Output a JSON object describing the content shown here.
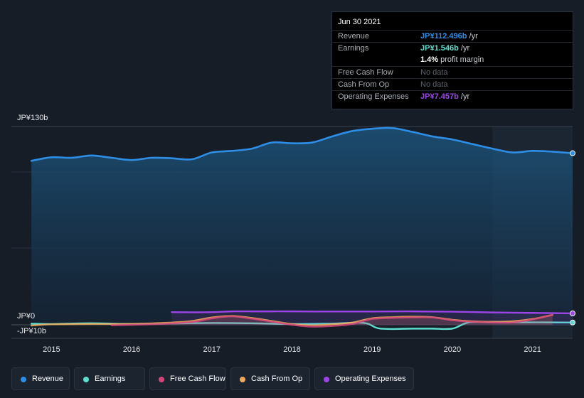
{
  "tooltip": {
    "date": "Jun 30 2021",
    "rows": [
      {
        "label": "Revenue",
        "value": "JP¥112.496b",
        "unit": " /yr",
        "color": "#2e8ee6"
      },
      {
        "label": "Earnings",
        "value": "JP¥1.546b",
        "unit": " /yr",
        "color": "#5ee0d0"
      },
      {
        "label": "",
        "value": "1.4%",
        "unit": " profit margin",
        "color": "#ffffff"
      },
      {
        "label": "Free Cash Flow",
        "value": "No data",
        "unit": "",
        "color": "#5e636b"
      },
      {
        "label": "Cash From Op",
        "value": "No data",
        "unit": "",
        "color": "#5e636b"
      },
      {
        "label": "Operating Expenses",
        "value": "JP¥7.457b",
        "unit": " /yr",
        "color": "#9b45e6"
      }
    ]
  },
  "axes": {
    "y_top_label": "JP¥130b",
    "y_zero_label": "JP¥0",
    "y_bottom_label": "-JP¥10b"
  },
  "chart_data": {
    "type": "line",
    "ylim": [
      -10,
      130
    ],
    "x_ticks": [
      "2015",
      "2016",
      "2017",
      "2018",
      "2019",
      "2020",
      "2021"
    ],
    "x_tick_values": [
      2015,
      2016,
      2017,
      2018,
      2019,
      2020,
      2021
    ],
    "xlim": [
      2014.5,
      2021.5
    ],
    "highlight_from": 2020.5,
    "series": [
      {
        "name": "Revenue",
        "color": "#2e8ee6",
        "area": true,
        "x": [
          2014.75,
          2015.0,
          2015.25,
          2015.5,
          2015.75,
          2016.0,
          2016.25,
          2016.5,
          2016.75,
          2017.0,
          2017.25,
          2017.5,
          2017.75,
          2018.0,
          2018.25,
          2018.5,
          2018.75,
          2019.0,
          2019.25,
          2019.5,
          2019.75,
          2020.0,
          2020.25,
          2020.5,
          2020.75,
          2021.0,
          2021.25,
          2021.5
        ],
        "y": [
          107.5,
          109.8,
          109.5,
          111.0,
          109.5,
          108.0,
          109.5,
          109.2,
          108.5,
          113.0,
          114.0,
          115.5,
          119.5,
          119.0,
          119.5,
          123.5,
          127.0,
          128.5,
          129.0,
          126.5,
          123.5,
          121.5,
          118.5,
          115.5,
          113.0,
          114.0,
          113.5,
          112.5
        ]
      },
      {
        "name": "Earnings",
        "color": "#5ee0d0",
        "area": false,
        "x": [
          2014.75,
          2015.0,
          2015.5,
          2016.0,
          2016.5,
          2017.0,
          2017.5,
          2018.0,
          2018.5,
          2018.9,
          2019.1,
          2019.5,
          2019.75,
          2020.0,
          2020.2,
          2020.5,
          2021.0,
          2021.5
        ],
        "y": [
          0.7,
          0.5,
          1.0,
          0.5,
          0.9,
          1.2,
          1.0,
          0.5,
          0.8,
          1.2,
          -2.5,
          -2.5,
          -2.5,
          -2.5,
          1.5,
          1.5,
          1.6,
          1.5
        ]
      },
      {
        "name": "Free Cash Flow",
        "color": "#d6457a",
        "area": false,
        "x": [
          2015.75,
          2016.25,
          2016.75,
          2017.0,
          2017.25,
          2017.5,
          2017.75,
          2018.0,
          2018.25,
          2018.5,
          2018.75,
          2019.0,
          2019.25,
          2019.5,
          2019.75,
          2020.0,
          2020.25,
          2020.5,
          2020.75,
          2021.0,
          2021.25
        ],
        "y": [
          -0.3,
          0.3,
          1.8,
          4.2,
          5.5,
          4.0,
          2.0,
          0.0,
          -1.2,
          -0.8,
          0.5,
          3.8,
          4.5,
          4.8,
          4.8,
          3.0,
          2.0,
          1.5,
          1.5,
          3.5,
          6.5
        ]
      },
      {
        "name": "Cash From Op",
        "color": "#f0a95a",
        "area": false,
        "x": [
          2014.75,
          2015.0,
          2015.5,
          2016.0,
          2016.5,
          2016.75,
          2017.0,
          2017.25,
          2017.5,
          2017.75,
          2018.0,
          2018.25,
          2018.5,
          2018.75,
          2019.0,
          2019.25,
          2019.5,
          2019.75,
          2020.0,
          2020.25,
          2020.5,
          2020.75,
          2021.0,
          2021.25
        ],
        "y": [
          -0.5,
          0.3,
          0.5,
          0.6,
          1.5,
          2.5,
          4.8,
          5.8,
          4.5,
          2.5,
          0.5,
          -0.3,
          0.3,
          1.5,
          4.3,
          5.0,
          5.3,
          5.0,
          3.3,
          2.3,
          2.0,
          2.3,
          3.8,
          6.5
        ]
      },
      {
        "name": "Operating Expenses",
        "color": "#9b45e6",
        "area": false,
        "x": [
          2016.5,
          2016.75,
          2017.0,
          2017.25,
          2017.5,
          2017.75,
          2018.0,
          2018.5,
          2019.0,
          2019.5,
          2020.0,
          2020.5,
          2021.0,
          2021.5
        ],
        "y": [
          8.3,
          8.2,
          8.3,
          8.8,
          8.8,
          8.8,
          8.8,
          8.7,
          8.7,
          8.8,
          8.6,
          8.1,
          7.8,
          7.5
        ]
      }
    ]
  },
  "legend": [
    {
      "label": "Revenue",
      "color": "#2e8ee6"
    },
    {
      "label": "Earnings",
      "color": "#5ee0d0"
    },
    {
      "label": "Free Cash Flow",
      "color": "#d6457a"
    },
    {
      "label": "Cash From Op",
      "color": "#f0a95a"
    },
    {
      "label": "Operating Expenses",
      "color": "#9b45e6"
    }
  ]
}
